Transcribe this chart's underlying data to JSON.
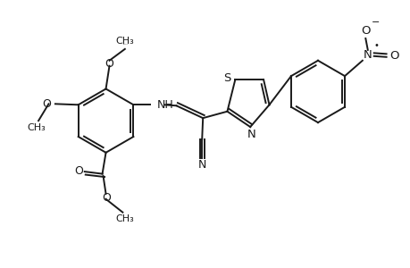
{
  "bg_color": "#ffffff",
  "line_color": "#1a1a1a",
  "line_width": 1.4,
  "fig_width": 4.6,
  "fig_height": 3.0,
  "dpi": 100,
  "xlim": [
    0,
    9.2
  ],
  "ylim": [
    0,
    6.0
  ]
}
